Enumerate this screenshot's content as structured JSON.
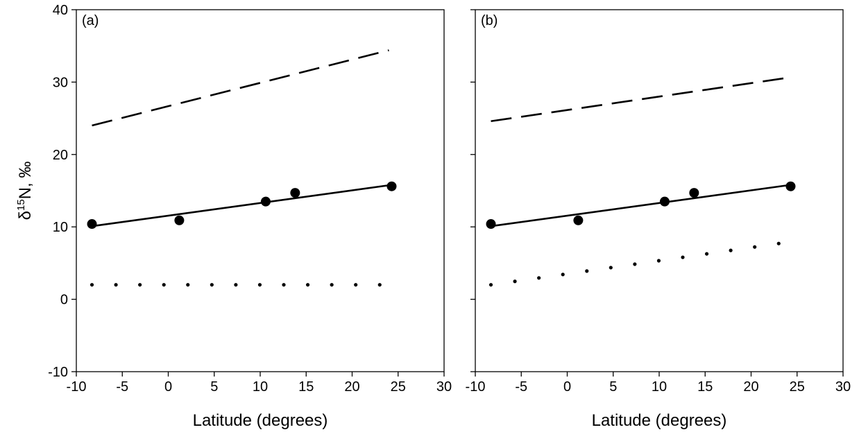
{
  "chart_data": [
    {
      "type": "scatter",
      "panel_label": "(a)",
      "xlabel": "Latitude (degrees)",
      "ylabel": "δ15N, ‰",
      "xlim": [
        -10,
        30
      ],
      "ylim": [
        -10,
        40
      ],
      "xticks": [
        -10,
        -5,
        0,
        5,
        10,
        15,
        20,
        25,
        30
      ],
      "yticks": [
        -10,
        0,
        10,
        20,
        30,
        40
      ],
      "grid": false,
      "points": {
        "x": [
          -8.3,
          1.2,
          10.6,
          13.8,
          24.3
        ],
        "y": [
          10.4,
          10.9,
          13.5,
          14.7,
          15.6
        ]
      },
      "series": [
        {
          "style": "dashed",
          "x": [
            -8.3,
            24.0
          ],
          "y": [
            24.0,
            34.4
          ]
        },
        {
          "style": "solid",
          "x": [
            -8.3,
            24.3
          ],
          "y": [
            10.1,
            15.8
          ]
        },
        {
          "style": "dotted",
          "x": [
            -8.3,
            23.0
          ],
          "y": [
            2.0,
            2.0
          ]
        }
      ]
    },
    {
      "type": "scatter",
      "panel_label": "(b)",
      "xlabel": "Latitude (degrees)",
      "ylabel": "",
      "xlim": [
        -10,
        30
      ],
      "ylim": [
        -10,
        40
      ],
      "xticks": [
        -10,
        -5,
        0,
        5,
        10,
        15,
        20,
        25,
        30
      ],
      "yticks": [
        -10,
        0,
        10,
        20,
        30,
        40
      ],
      "grid": false,
      "points": {
        "x": [
          -8.3,
          1.2,
          10.6,
          13.8,
          24.3
        ],
        "y": [
          10.4,
          10.9,
          13.5,
          14.7,
          15.6
        ]
      },
      "series": [
        {
          "style": "dashed",
          "x": [
            -8.3,
            24.0
          ],
          "y": [
            24.6,
            30.6
          ]
        },
        {
          "style": "solid",
          "x": [
            -8.3,
            24.3
          ],
          "y": [
            10.1,
            15.8
          ]
        },
        {
          "style": "dotted",
          "x": [
            -8.3,
            23.0
          ],
          "y": [
            2.0,
            7.7
          ]
        }
      ]
    }
  ]
}
